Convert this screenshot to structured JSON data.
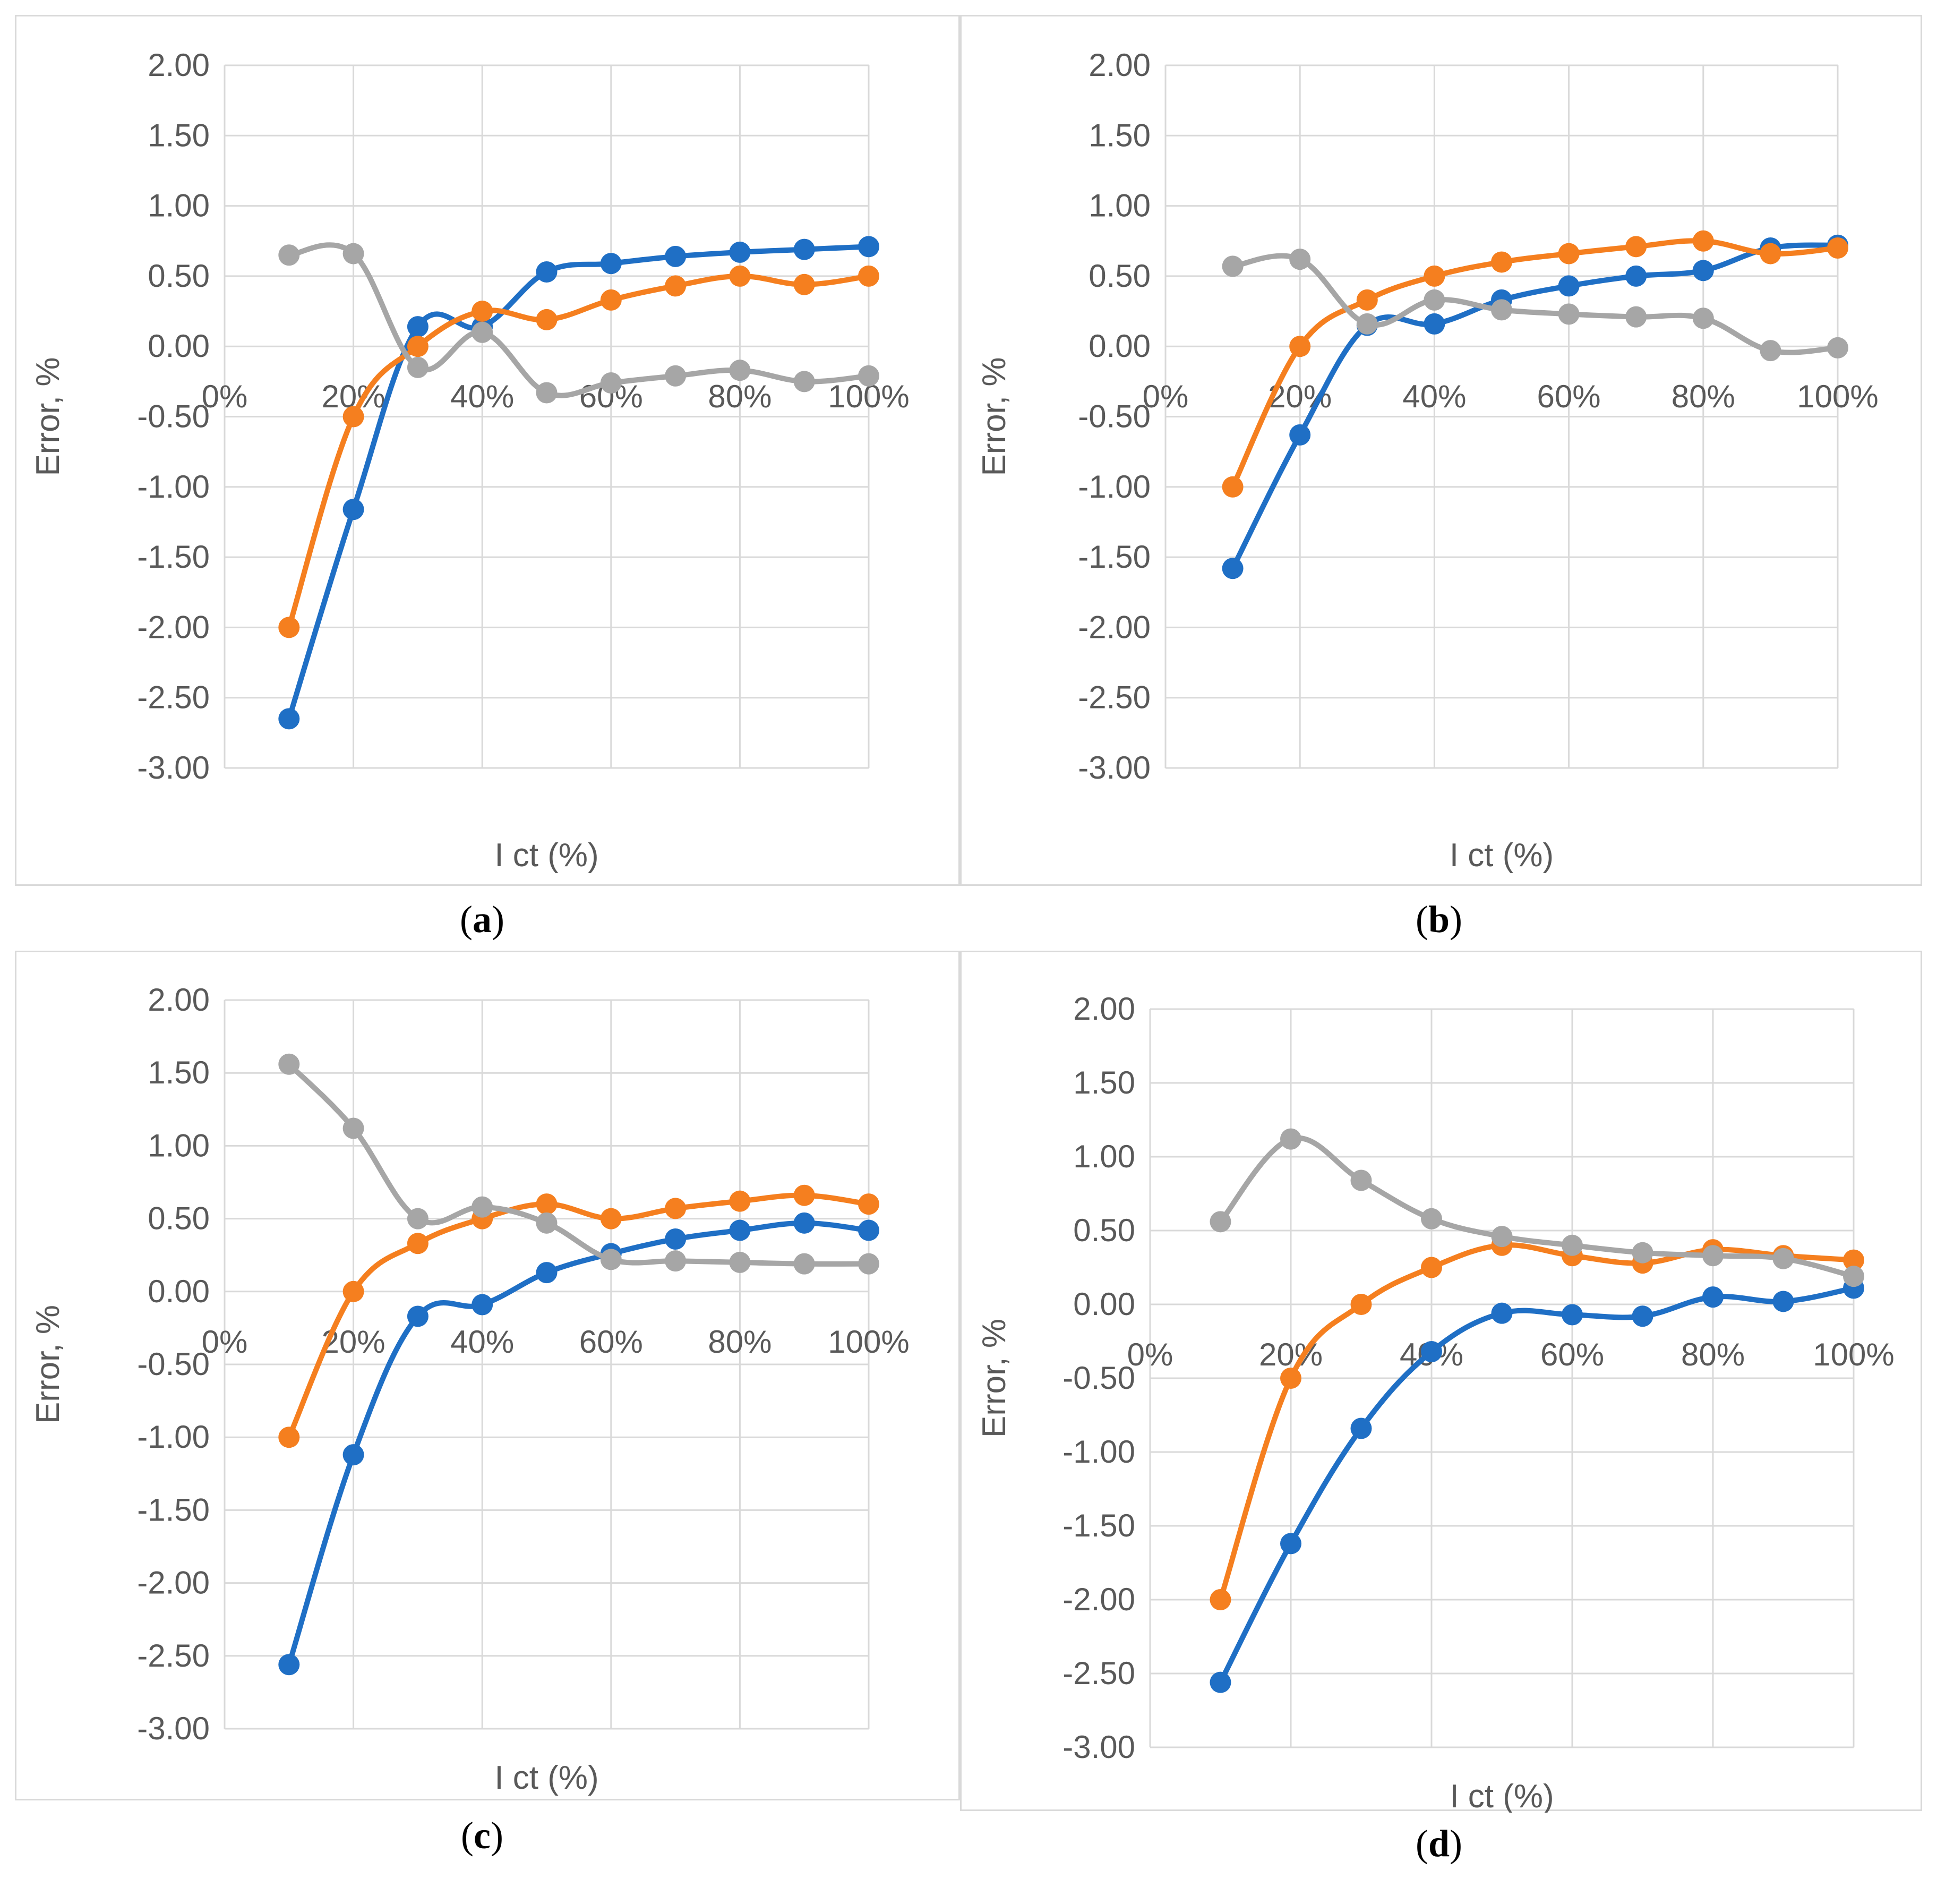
{
  "chart_data": [
    {
      "type": "line",
      "caption": "a",
      "x": [
        10,
        20,
        30,
        40,
        50,
        60,
        70,
        80,
        90,
        100
      ],
      "xticks": [
        "0%",
        "20%",
        "40%",
        "60%",
        "80%",
        "100%"
      ],
      "yticks": [
        "2.00",
        "1.50",
        "1.00",
        "0.50",
        "0.00",
        "-0.50",
        "-1.00",
        "-1.50",
        "-2.00",
        "-2.50",
        "-3.00"
      ],
      "ylim": [
        -3,
        2
      ],
      "xlim": [
        0,
        100
      ],
      "xlabel": "I ct (%)",
      "ylabel": "Error, %",
      "series": [
        {
          "name": "blue",
          "color": "#1f6fc5",
          "values": [
            -2.65,
            -1.16,
            0.14,
            0.14,
            0.53,
            0.59,
            0.64,
            0.67,
            0.69,
            0.71
          ]
        },
        {
          "name": "orange",
          "color": "#f57f1f",
          "values": [
            -2.0,
            -0.5,
            0.0,
            0.25,
            0.19,
            0.33,
            0.43,
            0.5,
            0.44,
            0.5
          ]
        },
        {
          "name": "gray",
          "color": "#a6a6a6",
          "values": [
            0.65,
            0.66,
            -0.15,
            0.1,
            -0.33,
            -0.26,
            -0.21,
            -0.17,
            -0.25,
            -0.21
          ]
        }
      ]
    },
    {
      "type": "line",
      "caption": "b",
      "x": [
        10,
        20,
        30,
        40,
        50,
        60,
        70,
        80,
        90,
        100
      ],
      "xticks": [
        "0%",
        "20%",
        "40%",
        "60%",
        "80%",
        "100%"
      ],
      "yticks": [
        "2.00",
        "1.50",
        "1.00",
        "0.50",
        "0.00",
        "-0.50",
        "-1.00",
        "-1.50",
        "-2.00",
        "-2.50",
        "-3.00"
      ],
      "ylim": [
        -3,
        2
      ],
      "xlim": [
        0,
        100
      ],
      "xlabel": "I ct (%)",
      "ylabel": "Error, %",
      "series": [
        {
          "name": "blue",
          "color": "#1f6fc5",
          "values": [
            -1.58,
            -0.63,
            0.15,
            0.16,
            0.33,
            0.43,
            0.5,
            0.54,
            0.7,
            0.72
          ]
        },
        {
          "name": "orange",
          "color": "#f57f1f",
          "values": [
            -1.0,
            0.0,
            0.33,
            0.5,
            0.6,
            0.66,
            0.71,
            0.75,
            0.66,
            0.7
          ]
        },
        {
          "name": "gray",
          "color": "#a6a6a6",
          "values": [
            0.57,
            0.62,
            0.16,
            0.33,
            0.26,
            0.23,
            0.21,
            0.2,
            -0.03,
            -0.01
          ]
        }
      ]
    },
    {
      "type": "line",
      "caption": "c",
      "x": [
        10,
        20,
        30,
        40,
        50,
        60,
        70,
        80,
        90,
        100
      ],
      "xticks": [
        "0%",
        "20%",
        "40%",
        "60%",
        "80%",
        "100%"
      ],
      "yticks": [
        "2.00",
        "1.50",
        "1.00",
        "0.50",
        "0.00",
        "-0.50",
        "-1.00",
        "-1.50",
        "-2.00",
        "-2.50",
        "-3.00"
      ],
      "ylim": [
        -3,
        2
      ],
      "xlim": [
        0,
        100
      ],
      "xlabel": "I ct (%)",
      "ylabel": "Error, %",
      "series": [
        {
          "name": "blue",
          "color": "#1f6fc5",
          "values": [
            -2.56,
            -1.12,
            -0.17,
            -0.09,
            0.13,
            0.26,
            0.36,
            0.42,
            0.47,
            0.42
          ]
        },
        {
          "name": "orange",
          "color": "#f57f1f",
          "values": [
            -1.0,
            0.0,
            0.33,
            0.5,
            0.6,
            0.5,
            0.57,
            0.62,
            0.66,
            0.6
          ]
        },
        {
          "name": "gray",
          "color": "#a6a6a6",
          "values": [
            1.56,
            1.12,
            0.5,
            0.58,
            0.47,
            0.22,
            0.21,
            0.2,
            0.19,
            0.19
          ]
        }
      ]
    },
    {
      "type": "line",
      "caption": "d",
      "x": [
        10,
        20,
        30,
        40,
        50,
        60,
        70,
        80,
        90,
        100
      ],
      "xticks": [
        "0%",
        "20%",
        "40%",
        "60%",
        "80%",
        "100%"
      ],
      "yticks": [
        "2.00",
        "1.50",
        "1.00",
        "0.50",
        "0.00",
        "-0.50",
        "-1.00",
        "-1.50",
        "-2.00",
        "-2.50",
        "-3.00"
      ],
      "ylim": [
        -3,
        2
      ],
      "xlim": [
        0,
        100
      ],
      "xlabel": "I ct (%)",
      "ylabel": "Error, %",
      "series": [
        {
          "name": "blue",
          "color": "#1f6fc5",
          "values": [
            -2.56,
            -1.62,
            -0.84,
            -0.32,
            -0.06,
            -0.07,
            -0.08,
            0.05,
            0.02,
            0.11
          ]
        },
        {
          "name": "orange",
          "color": "#f57f1f",
          "values": [
            -2.0,
            -0.5,
            0.0,
            0.25,
            0.4,
            0.33,
            0.28,
            0.37,
            0.33,
            0.3
          ]
        },
        {
          "name": "gray",
          "color": "#a6a6a6",
          "values": [
            0.56,
            1.12,
            0.84,
            0.58,
            0.46,
            0.4,
            0.35,
            0.33,
            0.31,
            0.19
          ]
        }
      ]
    }
  ]
}
